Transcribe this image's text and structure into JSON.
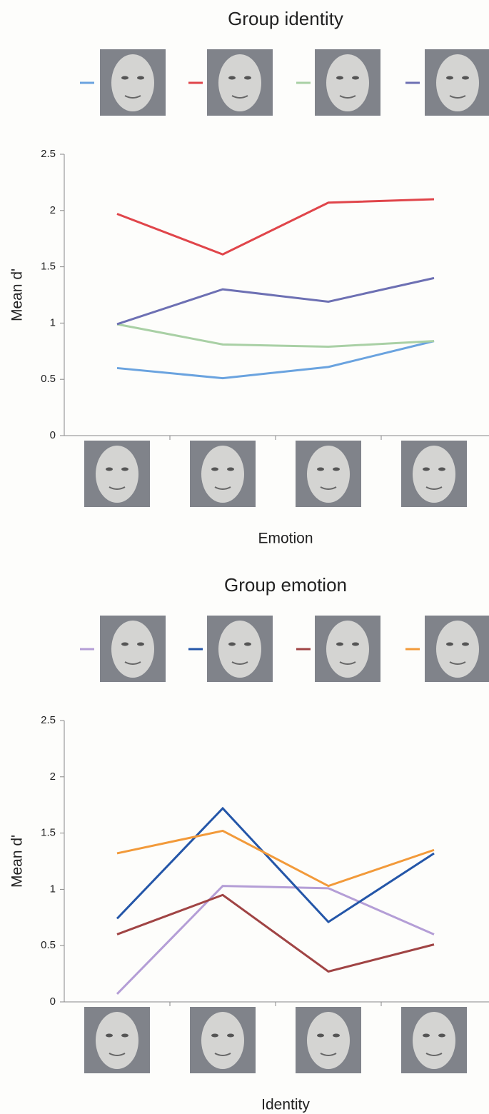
{
  "chart_data": [
    {
      "type": "line",
      "title": "Group identity",
      "xlabel": "Emotion",
      "ylabel": "Mean d'",
      "categories": [
        null,
        null,
        null,
        null
      ],
      "ylim": [
        0,
        2.5
      ],
      "yticks": [
        0,
        0.5,
        1,
        1.5,
        2,
        2.5
      ],
      "series": [
        {
          "color": "#6aa3df",
          "values": [
            0.6,
            0.51,
            0.61,
            0.84
          ]
        },
        {
          "color": "#e0454a",
          "values": [
            1.97,
            1.61,
            2.07,
            2.1
          ]
        },
        {
          "color": "#a9d0a5",
          "values": [
            0.99,
            0.81,
            0.79,
            0.84
          ]
        },
        {
          "color": "#6d70b3",
          "values": [
            0.99,
            1.3,
            1.19,
            1.4
          ]
        }
      ]
    },
    {
      "type": "line",
      "title": "Group emotion",
      "xlabel": "Identity",
      "ylabel": "Mean d'",
      "categories": [
        null,
        null,
        null,
        null
      ],
      "ylim": [
        0,
        2.5
      ],
      "yticks": [
        0,
        0.5,
        1,
        1.5,
        2,
        2.5
      ],
      "series": [
        {
          "color": "#b49ed6",
          "values": [
            0.07,
            1.03,
            1.01,
            0.6
          ]
        },
        {
          "color": "#2456a8",
          "values": [
            0.74,
            1.72,
            0.71,
            1.32
          ]
        },
        {
          "color": "#a04444",
          "values": [
            0.6,
            0.95,
            0.27,
            0.51
          ]
        },
        {
          "color": "#f29a3a",
          "values": [
            1.32,
            1.52,
            1.03,
            1.35
          ]
        }
      ]
    }
  ]
}
